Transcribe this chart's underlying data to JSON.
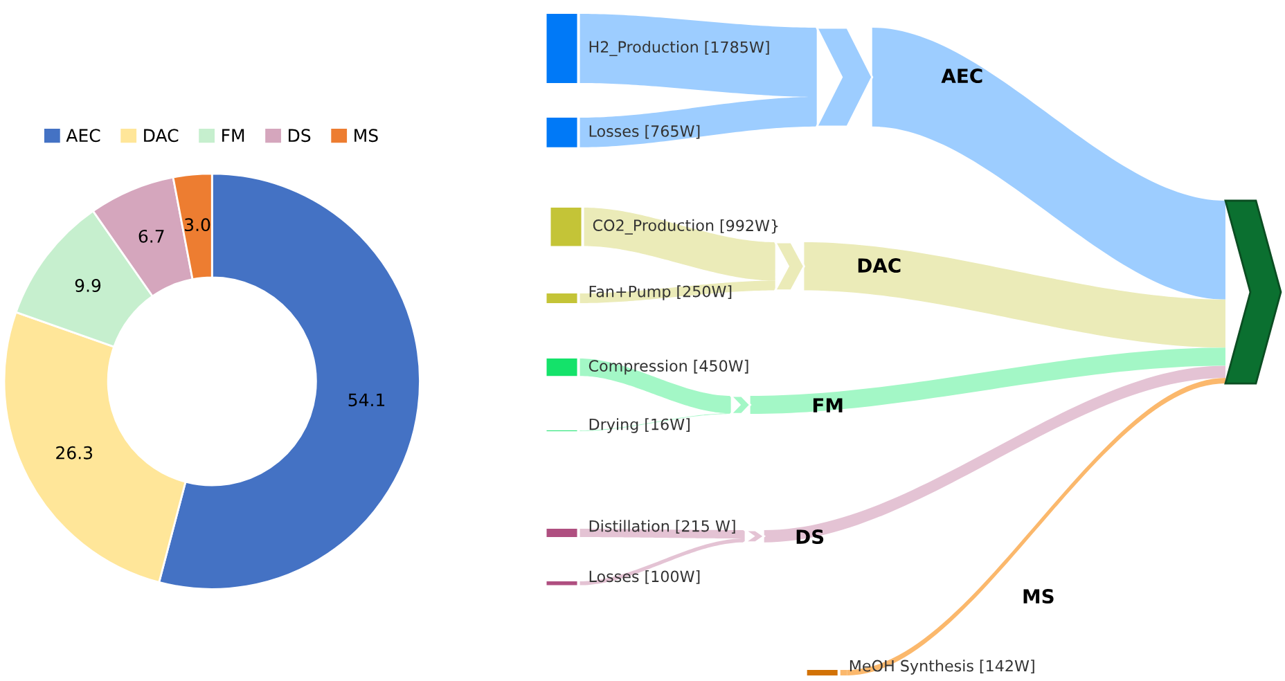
{
  "chart_data": [
    {
      "type": "donut",
      "categories": [
        "AEC",
        "DAC",
        "FM",
        "DS",
        "MS"
      ],
      "values": [
        54.1,
        26.3,
        9.9,
        6.7,
        3.0
      ],
      "value_labels": [
        "54.1",
        "26.3",
        "9.9",
        "6.7",
        "3.0"
      ],
      "colors": [
        "#4472c4",
        "#ffe699",
        "#c6efce",
        "#d5a6bd",
        "#ed7d31"
      ],
      "legend": "top"
    },
    {
      "type": "other",
      "categories": [
        "H2_Production",
        "Losses",
        "CO2_Production",
        "Fan+Pump",
        "Compression",
        "Drying",
        "Distillation",
        "Losses",
        "MeOH Synthesis"
      ],
      "values": [
        1785,
        765,
        992,
        250,
        450,
        16,
        215,
        100,
        142
      ],
      "value_labels": [
        "[1785W]",
        "[765W]",
        "[992W}",
        "[250W]",
        "[450W]",
        "[16W]",
        "[215 W]",
        "[100W]",
        "[142W]"
      ],
      "colors": [
        "#9dcdff",
        "#9dcdff",
        "#ebebb8",
        "#ebebb8",
        "#a3f7c6",
        "#a3f7c6",
        "#e4c3d4",
        "#e4c3d4",
        "#fbb86c"
      ],
      "annotations": [
        "AEC",
        "DAC",
        "FM",
        "DS",
        "MS"
      ]
    }
  ]
}
